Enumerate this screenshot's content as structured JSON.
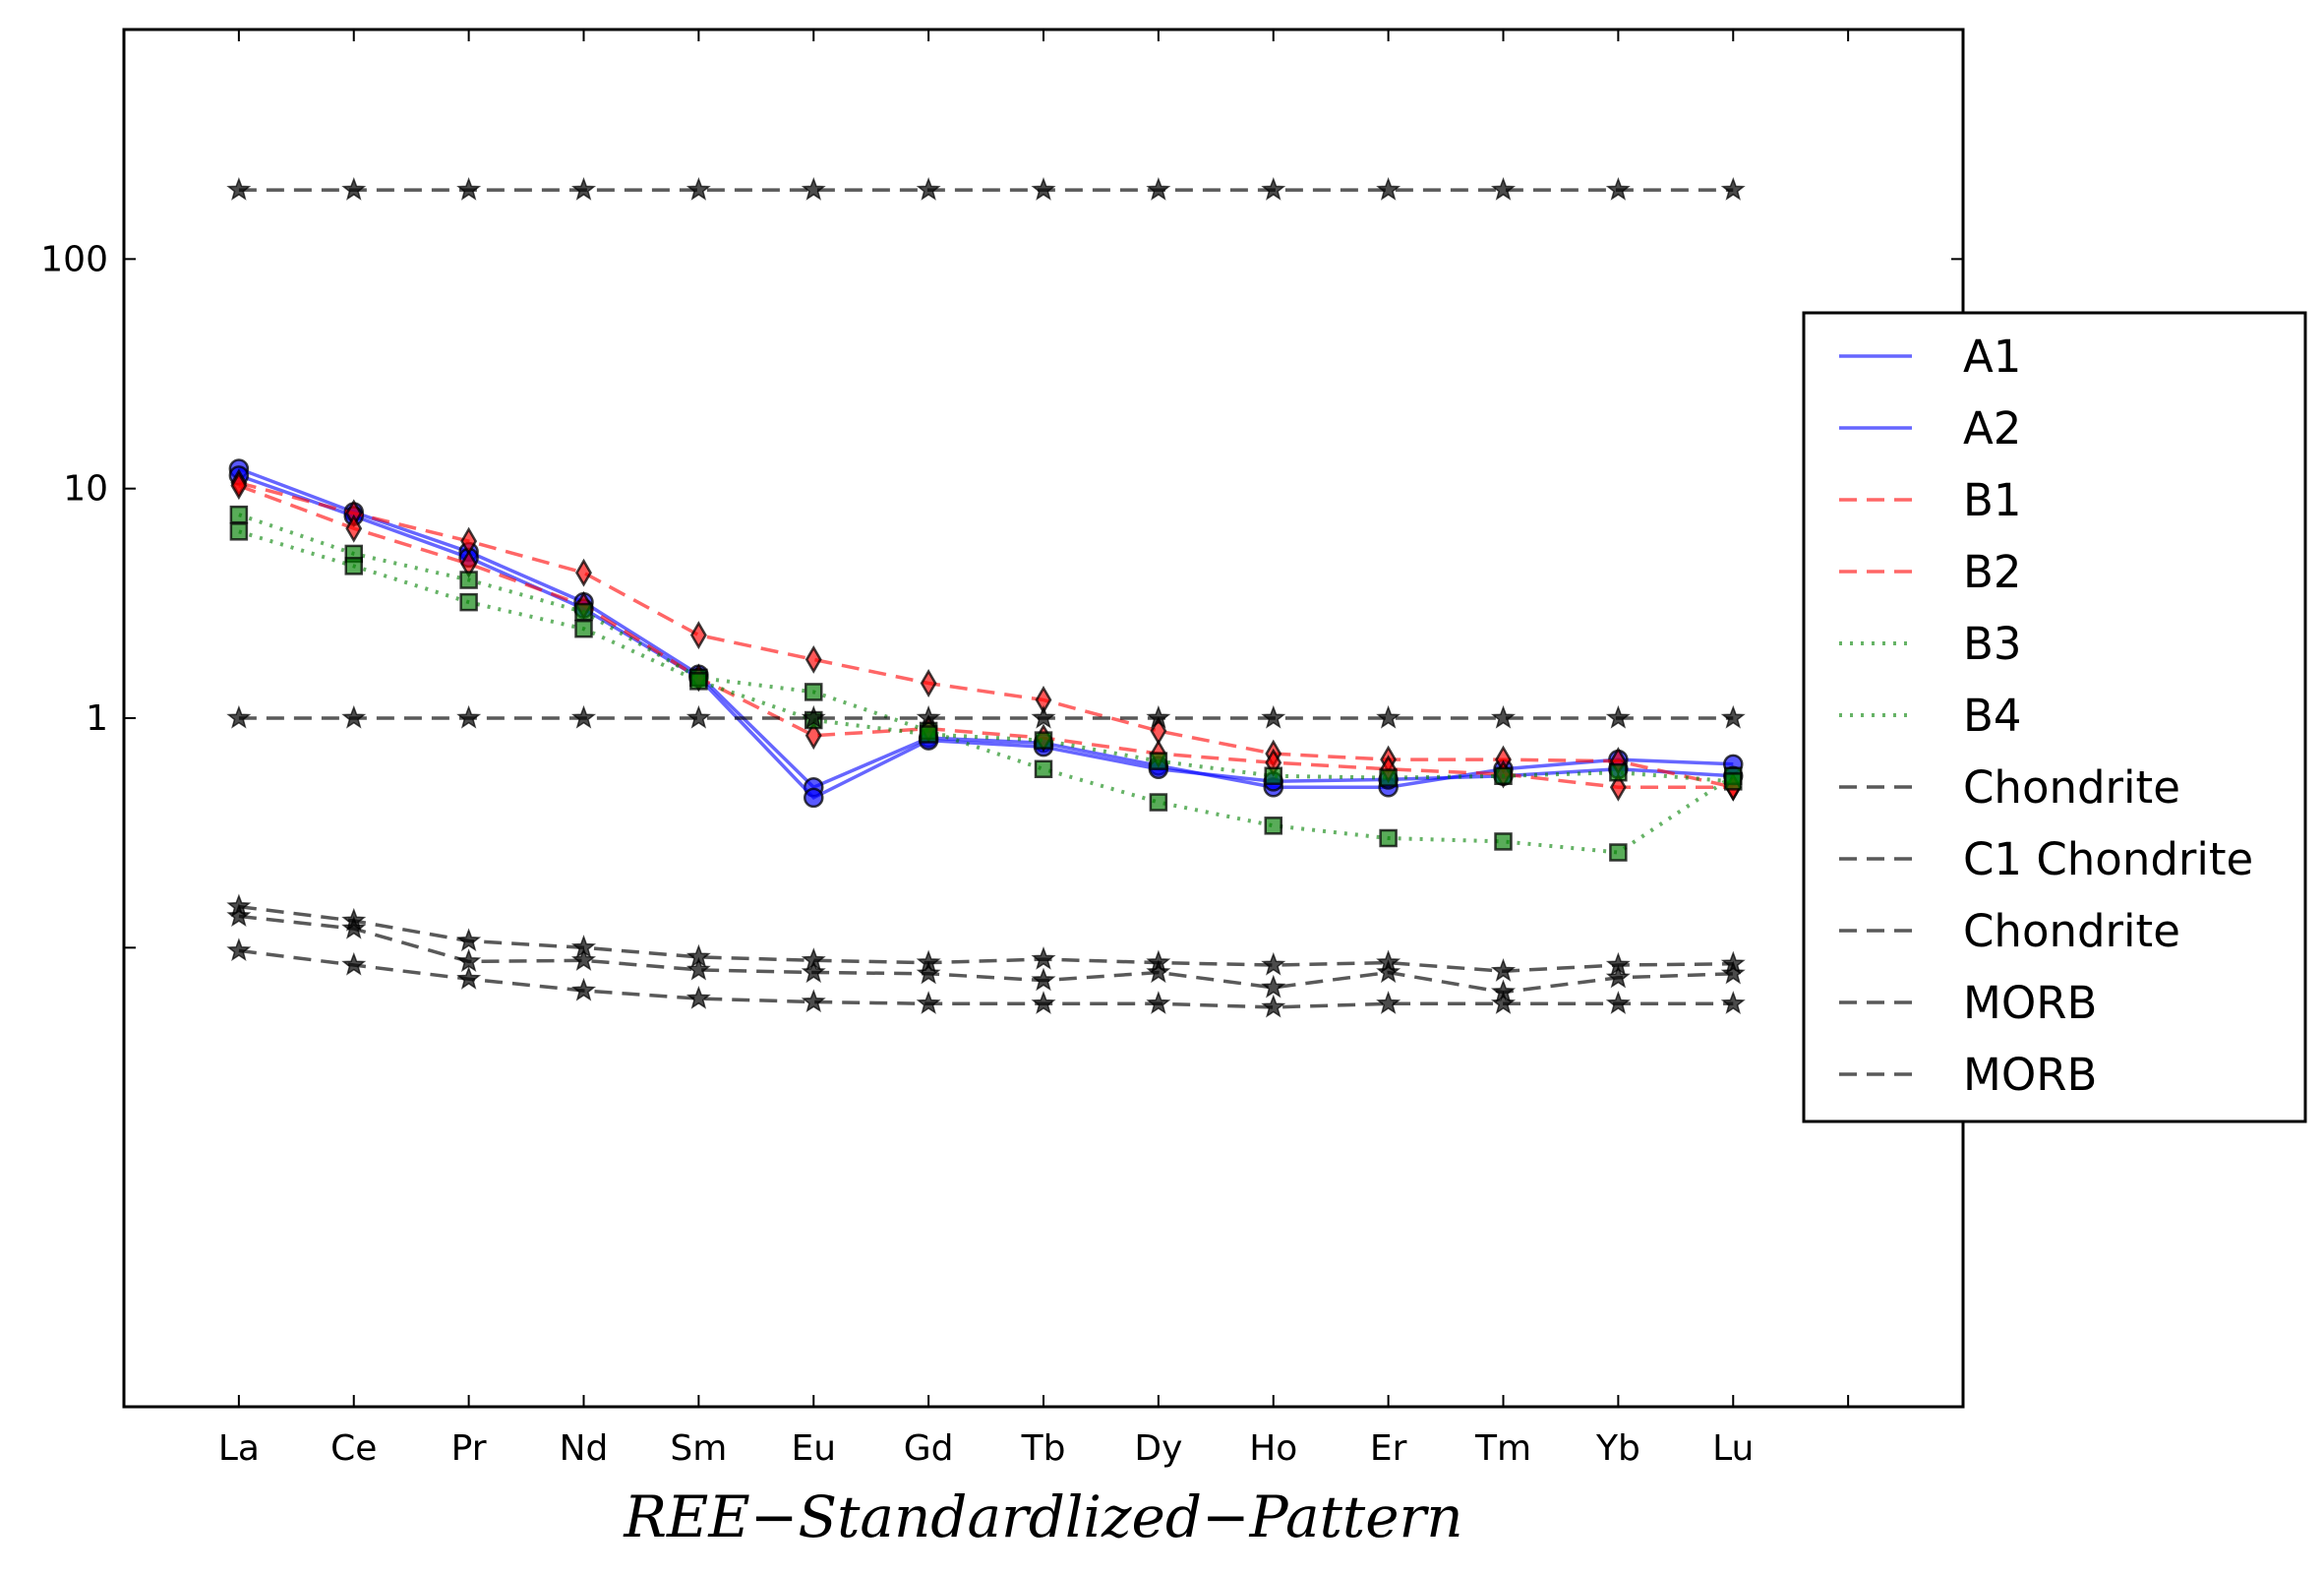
{
  "chart_data": {
    "type": "line",
    "x": [
      "La",
      "Ce",
      "Pr",
      "Nd",
      "Sm",
      "Eu",
      "Gd",
      "Tb",
      "Dy",
      "Ho",
      "Er",
      "Tm",
      "Yb",
      "Lu"
    ],
    "xlabel": "REE−Standardlized−Pattern",
    "ylabel": "",
    "yscale": "log",
    "ylim": [
      0.001,
      1000
    ],
    "yticks": [
      {
        "value": 100,
        "label": "100"
      },
      {
        "value": 10,
        "label": "10"
      },
      {
        "value": 1,
        "label": "1"
      },
      {
        "value": 0.1,
        "label": ""
      }
    ],
    "xlim": [
      -1,
      15
    ],
    "grid": false,
    "legend_position": "right",
    "series": [
      {
        "name": "A1",
        "color": "#0000ff",
        "dash": "solid",
        "marker": "circle",
        "values": [
          12.2,
          7.9,
          5.3,
          3.2,
          1.55,
          0.5,
          0.82,
          0.78,
          0.62,
          0.5,
          0.5,
          0.6,
          0.66,
          0.63
        ]
      },
      {
        "name": "A2",
        "color": "#0000ff",
        "dash": "solid",
        "marker": "circle",
        "values": [
          11.4,
          7.6,
          5.0,
          3.0,
          1.5,
          0.45,
          0.8,
          0.75,
          0.6,
          0.53,
          0.54,
          0.56,
          0.6,
          0.56
        ]
      },
      {
        "name": "B1",
        "color": "#ff0000",
        "dash": "dashed",
        "marker": "diamond",
        "values": [
          10.6,
          7.8,
          5.9,
          4.3,
          2.3,
          1.8,
          1.42,
          1.2,
          0.88,
          0.7,
          0.66,
          0.66,
          0.65,
          0.5
        ]
      },
      {
        "name": "B2",
        "color": "#ff0000",
        "dash": "dashed",
        "marker": "diamond",
        "values": [
          10.3,
          6.7,
          4.7,
          3.1,
          1.5,
          0.84,
          0.9,
          0.82,
          0.7,
          0.64,
          0.6,
          0.57,
          0.5,
          0.5
        ]
      },
      {
        "name": "B3",
        "color": "#008000",
        "dash": "dotted",
        "marker": "square",
        "values": [
          7.7,
          5.2,
          4.0,
          2.9,
          1.5,
          1.3,
          0.88,
          0.6,
          0.43,
          0.34,
          0.3,
          0.29,
          0.26,
          0.56
        ]
      },
      {
        "name": "B4",
        "color": "#008000",
        "dash": "dotted",
        "marker": "square",
        "values": [
          6.5,
          4.6,
          3.2,
          2.45,
          1.45,
          0.98,
          0.85,
          0.8,
          0.65,
          0.56,
          0.55,
          0.56,
          0.58,
          0.53
        ]
      },
      {
        "name": "Chondrite",
        "color": "#000000",
        "dash": "dashed",
        "marker": "star",
        "values": [
          200,
          200,
          200,
          200,
          200,
          200,
          200,
          200,
          200,
          200,
          200,
          200,
          200,
          200
        ]
      },
      {
        "name": "C1 Chondrite",
        "color": "#000000",
        "dash": "dashed",
        "marker": "star",
        "values": [
          1,
          1,
          1,
          1,
          1,
          1,
          1,
          1,
          1,
          1,
          1,
          1,
          1,
          1
        ]
      },
      {
        "name": "Chondrite",
        "color": "#000000",
        "dash": "dashed",
        "marker": "star",
        "values": [
          0.151,
          0.131,
          0.107,
          0.1,
          0.091,
          0.088,
          0.086,
          0.089,
          0.086,
          0.084,
          0.086,
          0.079,
          0.084,
          0.085
        ]
      },
      {
        "name": "MORB",
        "color": "#000000",
        "dash": "dashed",
        "marker": "star",
        "values": [
          0.137,
          0.121,
          0.087,
          0.088,
          0.08,
          0.078,
          0.077,
          0.072,
          0.078,
          0.067,
          0.078,
          0.064,
          0.074,
          0.077
        ]
      },
      {
        "name": "MORB",
        "color": "#000000",
        "dash": "dashed",
        "marker": "star",
        "values": [
          0.097,
          0.084,
          0.073,
          0.065,
          0.06,
          0.058,
          0.057,
          0.057,
          0.057,
          0.055,
          0.057,
          0.057,
          0.057,
          0.057
        ]
      }
    ]
  }
}
